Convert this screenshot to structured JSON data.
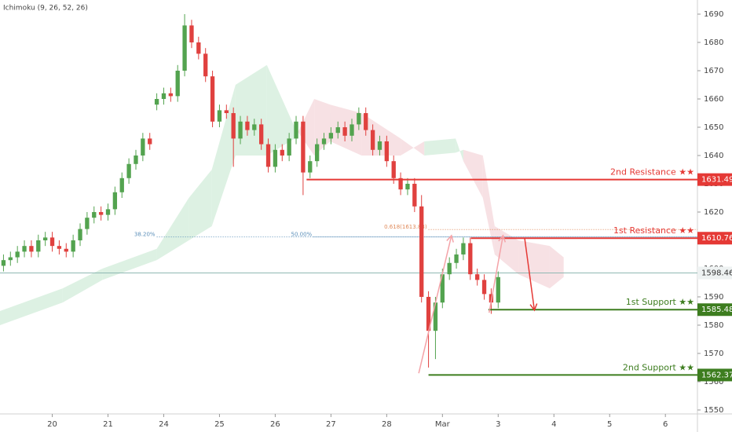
{
  "chart_data": {
    "type": "candlestick",
    "title": "Ichimoku (9, 26, 52, 26)",
    "xlim": [
      -0.5,
      99.6
    ],
    "xticks": [
      {
        "value": 7,
        "label": "20"
      },
      {
        "value": 15,
        "label": "21"
      },
      {
        "value": 23,
        "label": "24"
      },
      {
        "value": 31,
        "label": "25"
      },
      {
        "value": 39,
        "label": "26"
      },
      {
        "value": 47,
        "label": "27"
      },
      {
        "value": 55,
        "label": "28"
      },
      {
        "value": 63,
        "label": "Mar"
      },
      {
        "value": 71,
        "label": "3"
      },
      {
        "value": 79,
        "label": "4"
      },
      {
        "value": 87,
        "label": "5"
      },
      {
        "value": 95,
        "label": "6"
      }
    ],
    "ylim": [
      1548.6,
      1695
    ],
    "yticks": [
      1550,
      1560,
      1570,
      1580,
      1590,
      1600,
      1610,
      1620,
      1630,
      1640,
      1650,
      1660,
      1670,
      1680,
      1690
    ],
    "grid": false,
    "up_color": "#53a34f",
    "down_color": "#e0413f",
    "open": [
      1601,
      1603,
      1604,
      1606,
      1608,
      1606,
      1610,
      1611,
      1608,
      1607,
      1606,
      1610,
      1614,
      1618,
      1620,
      1619,
      1621,
      1627,
      1632,
      1637,
      1640,
      1646,
      1658,
      1660,
      1662,
      1661,
      1670,
      1686,
      1680,
      1676,
      1668,
      1652,
      1656,
      1655,
      1646,
      1652,
      1649,
      1651,
      1644,
      1636,
      1642,
      1640,
      1646,
      1652,
      1634,
      1638,
      1644,
      1646,
      1648,
      1650,
      1647,
      1651,
      1655,
      1649,
      1642,
      1645,
      1638,
      1632,
      1628,
      1630,
      1622,
      1590,
      1578,
      1588,
      1598,
      1602,
      1605,
      1609,
      1598,
      1596,
      1591,
      1588
    ],
    "high": [
      1605,
      1606,
      1608,
      1610,
      1610,
      1612,
      1613,
      1613,
      1610,
      1609,
      1612,
      1616,
      1620,
      1622,
      1622,
      1623,
      1629,
      1634,
      1639,
      1642,
      1648,
      1648,
      1662,
      1664,
      1664,
      1672,
      1690,
      1688,
      1682,
      1678,
      1670,
      1658,
      1658,
      1657,
      1654,
      1654,
      1653,
      1653,
      1646,
      1644,
      1644,
      1648,
      1654,
      1654,
      1640,
      1646,
      1648,
      1650,
      1652,
      1652,
      1653,
      1657,
      1657,
      1651,
      1647,
      1647,
      1640,
      1634,
      1632,
      1632,
      1626,
      1592,
      1590,
      1600,
      1604,
      1607,
      1611,
      1611,
      1600,
      1598,
      1593,
      1599
    ],
    "low": [
      1599,
      1601,
      1602,
      1604,
      1604,
      1604,
      1608,
      1606,
      1605,
      1604,
      1604,
      1608,
      1612,
      1616,
      1617,
      1617,
      1619,
      1625,
      1630,
      1635,
      1638,
      1642,
      1656,
      1658,
      1659,
      1659,
      1668,
      1678,
      1674,
      1666,
      1650,
      1650,
      1653,
      1636,
      1644,
      1647,
      1647,
      1642,
      1634,
      1634,
      1638,
      1638,
      1644,
      1626,
      1632,
      1636,
      1642,
      1644,
      1646,
      1645,
      1645,
      1649,
      1647,
      1640,
      1640,
      1636,
      1630,
      1626,
      1626,
      1620,
      1588,
      1565,
      1568,
      1586,
      1596,
      1600,
      1603,
      1596,
      1594,
      1589,
      1584,
      1586
    ],
    "close": [
      1603,
      1604,
      1606,
      1608,
      1606,
      1610,
      1611,
      1608,
      1607,
      1606,
      1610,
      1614,
      1618,
      1620,
      1619,
      1621,
      1627,
      1632,
      1637,
      1640,
      1646,
      1644,
      1660,
      1662,
      1661,
      1670,
      1686,
      1680,
      1676,
      1668,
      1652,
      1656,
      1655,
      1646,
      1652,
      1649,
      1651,
      1644,
      1636,
      1642,
      1640,
      1646,
      1652,
      1634,
      1638,
      1644,
      1646,
      1648,
      1650,
      1647,
      1651,
      1655,
      1649,
      1642,
      1645,
      1638,
      1632,
      1628,
      1630,
      1622,
      1590,
      1578,
      1588,
      1598,
      1602,
      1605,
      1609,
      1598,
      1596,
      1591,
      1588,
      1597
    ],
    "cloud": {
      "up_color": "#d7efde",
      "down_color": "#f6dcdf",
      "x": [
        -0.5,
        8.5,
        14.2,
        22,
        26.6,
        29.9,
        33.3,
        37.8,
        41.8,
        44.6,
        46.9,
        51.4,
        57,
        60.4,
        64.9,
        66,
        68.8,
        70.5,
        73.9,
        78.4,
        80.4
      ],
      "span_a": [
        1585,
        1593,
        1600,
        1607,
        1625,
        1635,
        1665,
        1672,
        1650,
        1640,
        1645,
        1640,
        1640,
        1645,
        1646,
        1638,
        1625,
        1605,
        1598,
        1593,
        1597
      ],
      "span_b": [
        1580,
        1588,
        1596,
        1603,
        1610,
        1615,
        1640,
        1640,
        1646,
        1660,
        1658,
        1655,
        1646,
        1640,
        1641,
        1642,
        1640,
        1615,
        1610,
        1608,
        1604
      ]
    },
    "current": {
      "value": 1598.46,
      "color": "#8fb8b3"
    },
    "levels": [
      {
        "label": "2nd Resistance ★★",
        "value": 1631.49,
        "from": 43.5,
        "color": "#e53935"
      },
      {
        "label": "1st Resistance ★★",
        "value": 1610.76,
        "from": 67.1,
        "color": "#e53935"
      },
      {
        "label": "1st Support ★★",
        "value": 1585.48,
        "from": 69.6,
        "color": "#3d7d1f"
      },
      {
        "label": "2nd Support ★★",
        "value": 1562.37,
        "from": 61,
        "color": "#3d7d1f"
      }
    ],
    "fib": [
      {
        "label": "38.20%",
        "value": 1611.2,
        "from": 22,
        "color": "#5b8fb9"
      },
      {
        "label": "50.00%",
        "value": 1611.2,
        "from": 44.5,
        "color": "#5b8fb9"
      },
      {
        "label": "0.618(1613.83)",
        "value": 1613.83,
        "from": 61,
        "color": "#e08a5a"
      }
    ],
    "arrows": [
      {
        "color": "#f4a3a8",
        "x": [
          59.6,
          64.3
        ],
        "y": [
          1563,
          1611.7
        ]
      },
      {
        "color": "#f4a3a8",
        "x": [
          69.7,
          71.7
        ],
        "y": [
          1584.4,
          1611.7
        ]
      },
      {
        "color": "#e53935",
        "x": [
          74.8,
          76.2
        ],
        "y": [
          1610.8,
          1585.3
        ]
      }
    ]
  }
}
